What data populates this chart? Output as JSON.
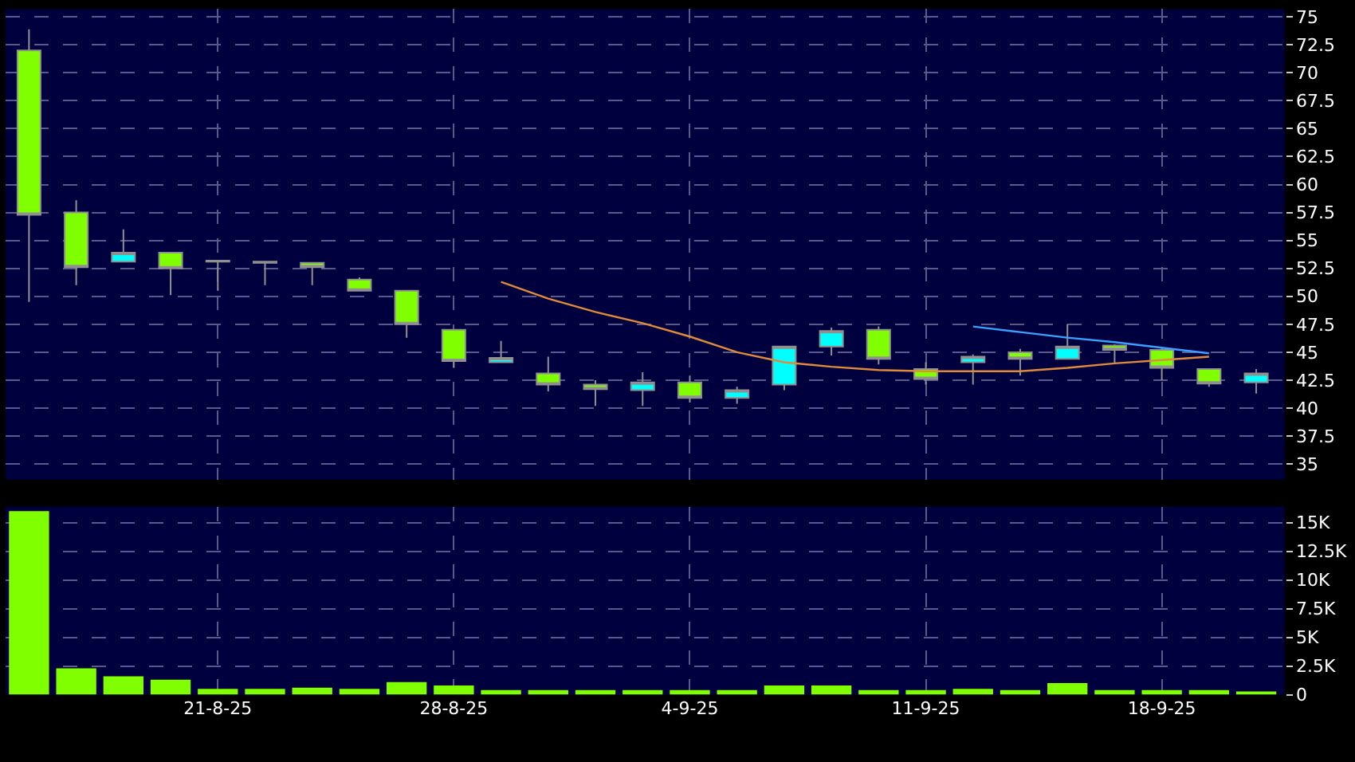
{
  "chart_data": [
    {
      "type": "candlestick",
      "categories": [
        null,
        null,
        null,
        null,
        "21-8-25",
        null,
        null,
        null,
        null,
        "28-8-25",
        null,
        null,
        null,
        null,
        "4-9-25",
        null,
        null,
        null,
        null,
        "11-9-25",
        null,
        null,
        null,
        null,
        "18-9-25",
        null,
        null
      ],
      "ohlc": [
        [
          72,
          73.9,
          49.5,
          57.3
        ],
        [
          57.5,
          58.6,
          51,
          52.6
        ],
        [
          53.1,
          56,
          53.1,
          53.9
        ],
        [
          53.9,
          53.9,
          50.1,
          52.5
        ],
        [
          53.2,
          53.2,
          50.5,
          53.1
        ],
        [
          53.1,
          53.1,
          51,
          53
        ],
        [
          53,
          53,
          51,
          52.6
        ],
        [
          51.5,
          51.7,
          50.5,
          50.5
        ],
        [
          50.5,
          50.5,
          46.3,
          47.5
        ],
        [
          47,
          47,
          43.6,
          44.2
        ],
        [
          44.1,
          46,
          44.1,
          44.5
        ],
        [
          43.1,
          44.6,
          41.5,
          42.1
        ],
        [
          42.1,
          42.5,
          40.2,
          41.7
        ],
        [
          41.6,
          43.2,
          40.2,
          42.3
        ],
        [
          42.3,
          42.9,
          40.5,
          40.9
        ],
        [
          40.9,
          41.9,
          40.4,
          41.6
        ],
        [
          42.1,
          45.5,
          41.6,
          45.5
        ],
        [
          45.5,
          47.2,
          44.7,
          46.9
        ],
        [
          47,
          47.3,
          43.9,
          44.4
        ],
        [
          43.5,
          44.1,
          42.1,
          42.6
        ],
        [
          44.1,
          44.8,
          42.1,
          44.6
        ],
        [
          45,
          45.3,
          42.9,
          44.4
        ],
        [
          44.4,
          47.5,
          44.4,
          45.5
        ],
        [
          45.6,
          45.7,
          44,
          45.2
        ],
        [
          45.2,
          45.4,
          42.5,
          43.6
        ],
        [
          43.5,
          43.5,
          41.9,
          42.2
        ],
        [
          42.3,
          43.5,
          41.3,
          43.1
        ]
      ],
      "colors": [
        "#80ff00",
        "#80ff00",
        "#00ffff",
        "#80ff00",
        "#80ff00",
        "#80ff00",
        "#80ff00",
        "#80ff00",
        "#80ff00",
        "#80ff00",
        "#00ffff",
        "#80ff00",
        "#80ff00",
        "#00ffff",
        "#80ff00",
        "#00ffff",
        "#00ffff",
        "#00ffff",
        "#80ff00",
        "#80ff00",
        "#00ffff",
        "#80ff00",
        "#00ffff",
        "#80ff00",
        "#80ff00",
        "#80ff00",
        "#00ffff"
      ],
      "series": [
        {
          "type": "line",
          "color": "#e08a3c",
          "values": [
            null,
            null,
            null,
            null,
            null,
            null,
            null,
            null,
            null,
            null,
            51.3,
            49.8,
            48.6,
            47.6,
            46.4,
            45,
            44.1,
            43.7,
            43.4,
            43.3,
            43.3,
            43.3,
            43.6,
            44,
            44.3,
            44.6,
            null
          ]
        },
        {
          "type": "line",
          "color": "#3aa0ff",
          "values": [
            null,
            null,
            null,
            null,
            null,
            null,
            null,
            null,
            null,
            null,
            null,
            null,
            null,
            null,
            null,
            null,
            null,
            null,
            null,
            null,
            47.3,
            46.8,
            46.3,
            45.9,
            45.4,
            44.9,
            null
          ]
        }
      ],
      "ylim": [
        33.6,
        75.7
      ],
      "yticks": [
        35,
        37.5,
        40,
        42.5,
        45,
        47.5,
        50,
        52.5,
        55,
        57.5,
        60,
        62.5,
        65,
        67.5,
        70,
        72.5,
        75
      ],
      "tick_labels": "y",
      "grid": true
    },
    {
      "type": "bar",
      "categories": [
        null,
        null,
        null,
        null,
        "21-8-25",
        null,
        null,
        null,
        null,
        "28-8-25",
        null,
        null,
        null,
        null,
        "4-9-25",
        null,
        null,
        null,
        null,
        "11-9-25",
        null,
        null,
        null,
        null,
        "18-9-25",
        null,
        null
      ],
      "values": [
        16000,
        2300,
        1600,
        1300,
        500,
        500,
        600,
        500,
        1100,
        800,
        400,
        400,
        400,
        400,
        400,
        400,
        800,
        800,
        400,
        400,
        500,
        400,
        1000,
        400,
        400,
        400,
        200
      ],
      "color": "#80ff00",
      "ylim": [
        0,
        16400
      ],
      "yticks": [
        0,
        {
          "value": 2500,
          "label": "2.5K"
        },
        {
          "value": 5000,
          "label": "5K"
        },
        {
          "value": 7500,
          "label": "7.5K"
        },
        {
          "value": 10000,
          "label": "10K"
        },
        {
          "value": 12500,
          "label": "12.5K"
        },
        {
          "value": 15000,
          "label": "15K"
        }
      ],
      "grid": true
    }
  ]
}
